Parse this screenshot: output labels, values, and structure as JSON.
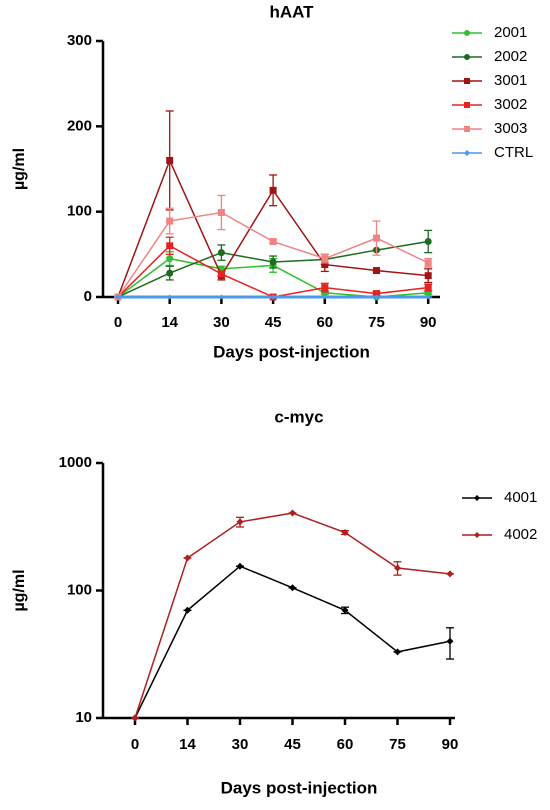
{
  "chart_data": [
    {
      "type": "line",
      "title": "hAAT",
      "x_label": "Days post-injection",
      "y_label": "µg/ml",
      "categories": [
        "0",
        "14",
        "30",
        "45",
        "60",
        "75",
        "90"
      ],
      "ylim": [
        0,
        300
      ],
      "yticks": [
        0,
        100,
        200,
        300
      ],
      "log": false,
      "legend": "right",
      "series": [
        {
          "name": "2001",
          "color": "#2fc12f",
          "marker": "circle",
          "values": [
            0,
            45,
            33,
            37,
            5,
            0,
            5
          ],
          "errors": [
            0,
            8,
            3,
            8,
            2,
            0,
            2
          ]
        },
        {
          "name": "2002",
          "color": "#1d6b1d",
          "marker": "circle",
          "values": [
            0,
            28,
            52,
            41,
            44,
            55,
            65
          ],
          "errors": [
            0,
            8,
            9,
            7,
            6,
            0,
            13
          ]
        },
        {
          "name": "3001",
          "color": "#a01414",
          "marker": "square",
          "values": [
            0,
            160,
            25,
            125,
            38,
            31,
            25
          ],
          "errors": [
            0,
            58,
            5,
            18,
            8,
            0,
            8
          ]
        },
        {
          "name": "3002",
          "color": "#e82222",
          "marker": "square",
          "values": [
            0,
            60,
            27,
            0,
            11,
            4,
            11
          ],
          "errors": [
            0,
            10,
            3,
            0,
            5,
            2,
            4
          ]
        },
        {
          "name": "3003",
          "color": "#f08484",
          "marker": "square",
          "values": [
            0,
            89,
            99,
            65,
            45,
            69,
            40
          ],
          "errors": [
            0,
            15,
            20,
            2,
            5,
            20,
            5
          ]
        },
        {
          "name": "CTRL",
          "color": "#4a9ae8",
          "marker": "diamond",
          "values": [
            0,
            0,
            0,
            0,
            0,
            0,
            0
          ],
          "errors": [
            0,
            0,
            0,
            0,
            0,
            0,
            0
          ]
        }
      ]
    },
    {
      "type": "line",
      "title": "c-myc",
      "x_label": "Days post-injection",
      "y_label": "µg/ml",
      "categories": [
        "0",
        "14",
        "30",
        "45",
        "60",
        "75",
        "90"
      ],
      "ylim": [
        10,
        1000
      ],
      "yticks": [
        10,
        100,
        1000
      ],
      "log": true,
      "legend": "right",
      "series": [
        {
          "name": "4001",
          "color": "#000000",
          "marker": "diamond",
          "values": [
            10,
            70,
            155,
            105,
            70,
            33,
            40
          ],
          "errors": [
            0,
            0,
            0,
            0,
            4,
            0,
            11
          ]
        },
        {
          "name": "4002",
          "color": "#b01e1e",
          "marker": "diamond",
          "values": [
            10,
            180,
            345,
            405,
            285,
            150,
            135
          ],
          "errors": [
            0,
            0,
            30,
            0,
            10,
            18,
            0
          ]
        }
      ]
    }
  ]
}
